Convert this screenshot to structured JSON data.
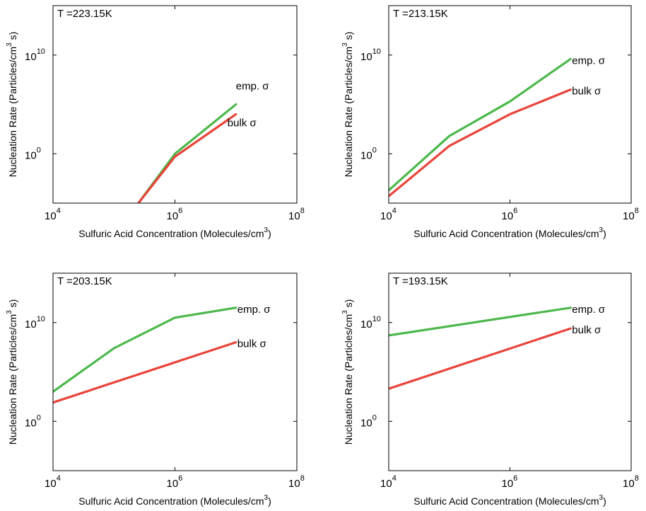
{
  "colors": {
    "emp": "#4cb84c",
    "bulk": "#e8443a"
  },
  "chart_data": [
    {
      "type": "line",
      "title": "T =223.15K",
      "xlabel": "Sulfuric Acid Concentration (Molecules/cm",
      "xlabel_sup": "3",
      "xlabel_end": ")",
      "ylabel": "Nucleation Rate (Particles/cm",
      "ylabel_sup": "3",
      "ylabel_end": " s)",
      "xscale": "log",
      "yscale": "log",
      "xlim": [
        10000,
        100000000
      ],
      "ylim_log10": [
        -5,
        15
      ],
      "xticks": [
        {
          "base": "10",
          "exp": "4",
          "log": 4
        },
        {
          "base": "10",
          "exp": "6",
          "log": 6
        },
        {
          "base": "10",
          "exp": "8",
          "log": 8
        }
      ],
      "yticks": [
        {
          "base": "10",
          "exp": "0",
          "log": 0
        },
        {
          "base": "10",
          "exp": "10",
          "log": 10
        }
      ],
      "series": [
        {
          "name": "emp. σ",
          "x_log10": [
            5.4,
            6.0,
            7.0
          ],
          "y_log10": [
            -5,
            0,
            5.0
          ]
        },
        {
          "name": "bulk σ",
          "x_log10": [
            5.4,
            6.0,
            7.0
          ],
          "y_log10": [
            -5,
            -0.3,
            4.0
          ]
        }
      ]
    },
    {
      "type": "line",
      "title": "T =213.15K",
      "xlabel": "Sulfuric Acid Concentration (Molecules/cm",
      "xlabel_sup": "3",
      "xlabel_end": ")",
      "ylabel": "Nucleation Rate (Particles/cm",
      "ylabel_sup": "3",
      "ylabel_end": " s)",
      "xscale": "log",
      "yscale": "log",
      "xlim": [
        10000,
        100000000
      ],
      "ylim_log10": [
        -5,
        15
      ],
      "xticks": [
        {
          "base": "10",
          "exp": "4",
          "log": 4
        },
        {
          "base": "10",
          "exp": "6",
          "log": 6
        },
        {
          "base": "10",
          "exp": "8",
          "log": 8
        }
      ],
      "yticks": [
        {
          "base": "10",
          "exp": "0",
          "log": 0
        },
        {
          "base": "10",
          "exp": "10",
          "log": 10
        }
      ],
      "series": [
        {
          "name": "emp. σ",
          "x_log10": [
            4,
            5,
            6,
            7
          ],
          "y_log10": [
            -3.7,
            1.8,
            5.3,
            9.6
          ]
        },
        {
          "name": "bulk σ",
          "x_log10": [
            4,
            5,
            6,
            7
          ],
          "y_log10": [
            -4.3,
            0.8,
            4.0,
            6.5
          ]
        }
      ]
    },
    {
      "type": "line",
      "title": "T =203.15K",
      "xlabel": "Sulfuric Acid Concentration (Molecules/cm",
      "xlabel_sup": "3",
      "xlabel_end": ")",
      "ylabel": "Nucleation Rate (Particles/cm",
      "ylabel_sup": "3",
      "ylabel_end": " s)",
      "xscale": "log",
      "yscale": "log",
      "xlim": [
        10000,
        100000000
      ],
      "ylim_log10": [
        -5,
        15
      ],
      "xticks": [
        {
          "base": "10",
          "exp": "4",
          "log": 4
        },
        {
          "base": "10",
          "exp": "6",
          "log": 6
        },
        {
          "base": "10",
          "exp": "8",
          "log": 8
        }
      ],
      "yticks": [
        {
          "base": "10",
          "exp": "0",
          "log": 0
        },
        {
          "base": "10",
          "exp": "10",
          "log": 10
        }
      ],
      "series": [
        {
          "name": "emp. σ",
          "x_log10": [
            4,
            5,
            6,
            7
          ],
          "y_log10": [
            3.0,
            7.4,
            10.5,
            11.5
          ]
        },
        {
          "name": "bulk σ",
          "x_log10": [
            4,
            7
          ],
          "y_log10": [
            1.9,
            8.0
          ]
        }
      ]
    },
    {
      "type": "line",
      "title": "T =193.15K",
      "xlabel": "Sulfuric Acid Concentration (Molecules/cm",
      "xlabel_sup": "3",
      "xlabel_end": ")",
      "ylabel": "Nucleation Rate (Particles/cm",
      "ylabel_sup": "3",
      "ylabel_end": " s)",
      "xscale": "log",
      "yscale": "log",
      "xlim": [
        10000,
        100000000
      ],
      "ylim_log10": [
        -5,
        15
      ],
      "xticks": [
        {
          "base": "10",
          "exp": "4",
          "log": 4
        },
        {
          "base": "10",
          "exp": "6",
          "log": 6
        },
        {
          "base": "10",
          "exp": "8",
          "log": 8
        }
      ],
      "yticks": [
        {
          "base": "10",
          "exp": "0",
          "log": 0
        },
        {
          "base": "10",
          "exp": "10",
          "log": 10
        }
      ],
      "series": [
        {
          "name": "emp. σ",
          "x_log10": [
            4,
            7
          ],
          "y_log10": [
            8.7,
            11.5
          ]
        },
        {
          "name": "bulk σ",
          "x_log10": [
            4,
            7
          ],
          "y_log10": [
            3.3,
            9.4
          ]
        }
      ]
    }
  ]
}
